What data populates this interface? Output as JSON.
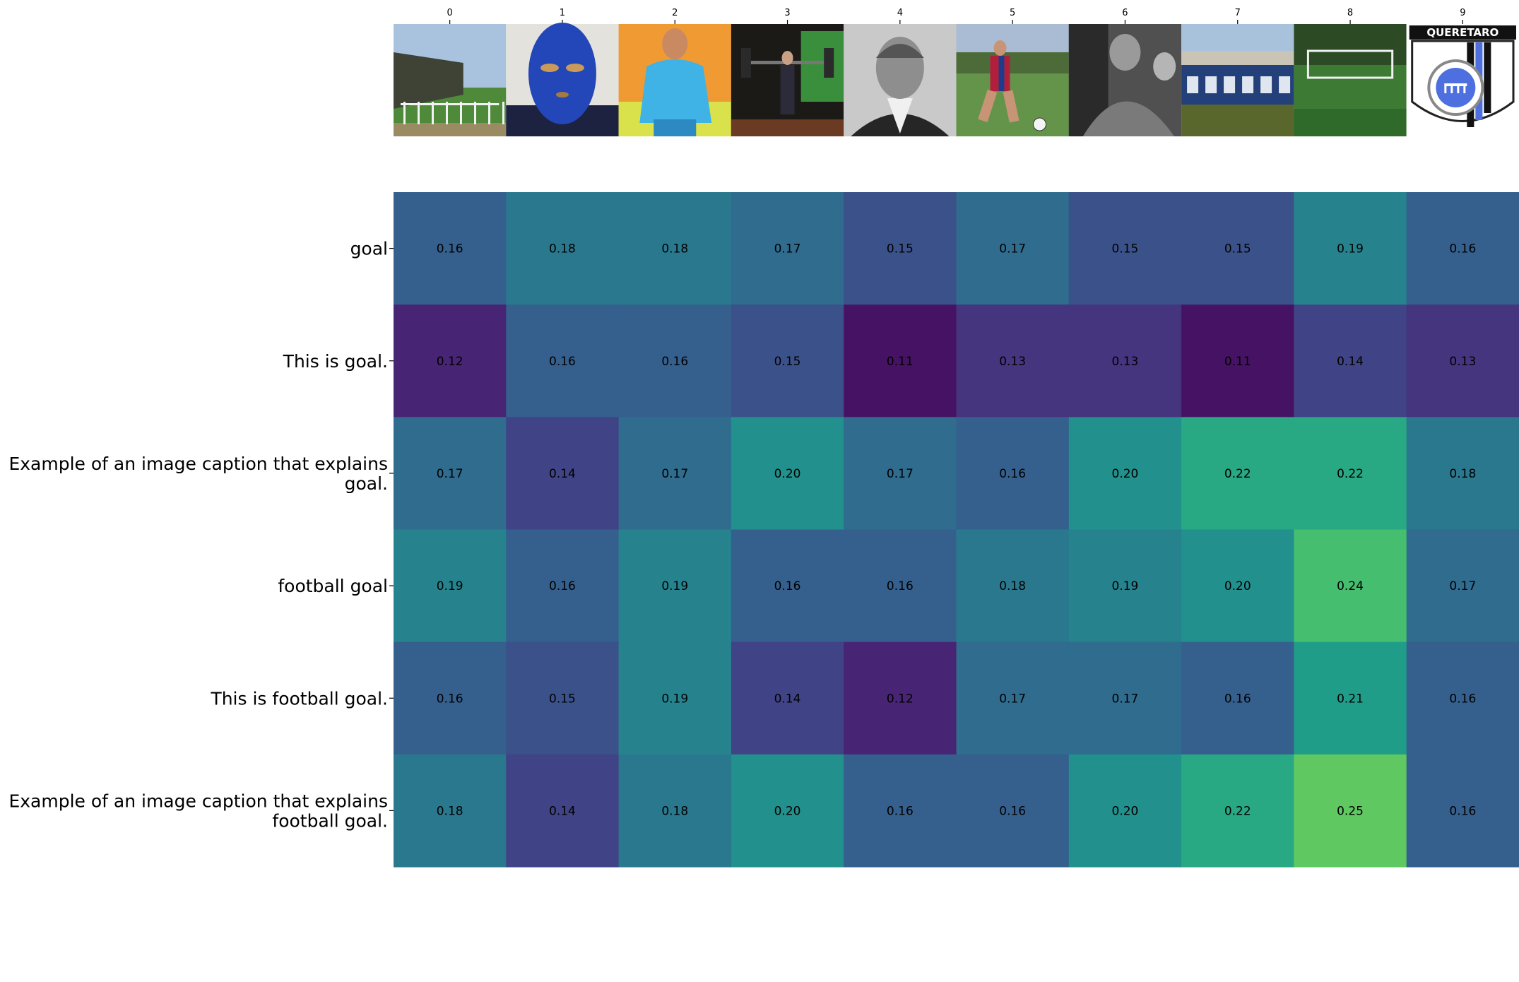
{
  "chart_data": {
    "type": "heatmap",
    "title": "",
    "xlabel": "",
    "ylabel": "",
    "x_ticks": [
      "0",
      "1",
      "2",
      "3",
      "4",
      "5",
      "6",
      "7",
      "8",
      "9"
    ],
    "image_subjects": [
      "football-stadium-stand",
      "person-in-blue-mask",
      "footballer-in-light-blue-kit",
      "weightlifter-in-gym",
      "vintage-portrait-man-in-suit",
      "footballer-with-ball",
      "black-and-white-players-crouching",
      "stadium-stand-latics",
      "grass-pitch-with-goal",
      "queretaro-club-crest"
    ],
    "crest_text": "QUERETARO",
    "rows": [
      [
        "goal"
      ],
      [
        "This is goal."
      ],
      [
        "Example of an image caption that explains",
        "goal."
      ],
      [
        "football goal"
      ],
      [
        "This is football goal."
      ],
      [
        "Example of an image caption that explains",
        "football goal."
      ]
    ],
    "values": [
      [
        0.16,
        0.18,
        0.18,
        0.17,
        0.15,
        0.17,
        0.15,
        0.15,
        0.19,
        0.16
      ],
      [
        0.12,
        0.16,
        0.16,
        0.15,
        0.11,
        0.13,
        0.13,
        0.11,
        0.14,
        0.13
      ],
      [
        0.17,
        0.14,
        0.17,
        0.2,
        0.17,
        0.16,
        0.2,
        0.22,
        0.22,
        0.18
      ],
      [
        0.19,
        0.16,
        0.19,
        0.16,
        0.16,
        0.18,
        0.19,
        0.2,
        0.24,
        0.17
      ],
      [
        0.16,
        0.15,
        0.19,
        0.14,
        0.12,
        0.17,
        0.17,
        0.16,
        0.21,
        0.16
      ],
      [
        0.18,
        0.14,
        0.18,
        0.2,
        0.16,
        0.16,
        0.2,
        0.22,
        0.25,
        0.16
      ]
    ],
    "value_format": "2-decimal",
    "colormap": "viridis",
    "color_range": [
      0.1,
      0.3
    ],
    "grid": false,
    "legend": "none"
  }
}
